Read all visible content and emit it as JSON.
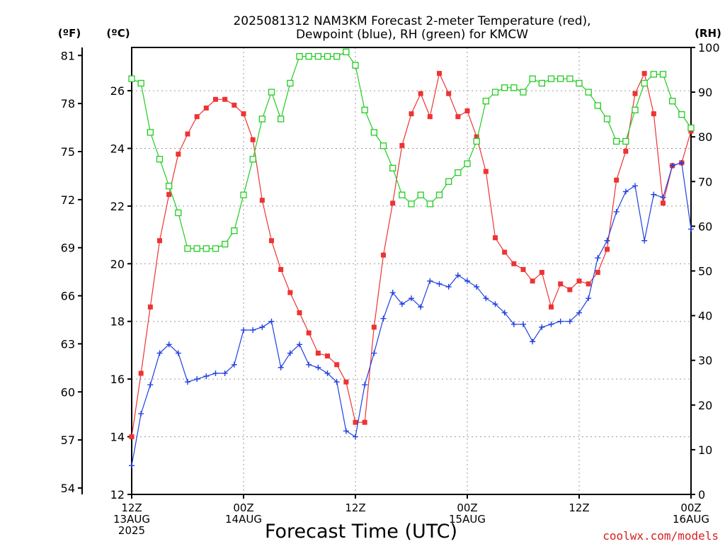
{
  "title_line1": "2025081312 NAM3KM Forecast 2-meter Temperature (red),",
  "title_line2": "Dewpoint (blue), RH (green) for KMCW",
  "credit": "coolwx.com/models",
  "chart_data": {
    "type": "line",
    "title": "2025081312 NAM3KM Forecast 2-meter Temperature (red), Dewpoint (blue), RH (green) for KMCW",
    "xlabel": "Forecast Time (UTC)",
    "x_hours": [
      0,
      1,
      2,
      3,
      4,
      5,
      6,
      7,
      8,
      9,
      10,
      11,
      12,
      13,
      14,
      15,
      16,
      17,
      18,
      19,
      20,
      21,
      22,
      23,
      24,
      25,
      26,
      27,
      28,
      29,
      30,
      31,
      32,
      33,
      34,
      35,
      36,
      37,
      38,
      39,
      40,
      41,
      42,
      43,
      44,
      45,
      46,
      47,
      48,
      49,
      50,
      51,
      52,
      53,
      54,
      55,
      56,
      57,
      58,
      59,
      60
    ],
    "x_ticks": [
      {
        "h": 0,
        "lines": [
          "12Z",
          "13AUG",
          "2025"
        ]
      },
      {
        "h": 12,
        "lines": [
          "00Z",
          "14AUG"
        ]
      },
      {
        "h": 24,
        "lines": [
          "12Z"
        ]
      },
      {
        "h": 36,
        "lines": [
          "00Z",
          "15AUG"
        ]
      },
      {
        "h": 48,
        "lines": [
          "12Z"
        ]
      },
      {
        "h": 60,
        "lines": [
          "00Z",
          "16AUG"
        ]
      }
    ],
    "xlim": [
      0,
      60
    ],
    "y_left_c": {
      "unit_label": "(ºC)",
      "ylim": [
        12,
        27.5
      ],
      "ticks": [
        12,
        14,
        16,
        18,
        20,
        22,
        24,
        26
      ]
    },
    "y_left_f": {
      "unit_label": "(ºF)",
      "ticks": [
        54,
        57,
        60,
        63,
        66,
        69,
        72,
        75,
        78,
        81
      ]
    },
    "y_right_rh": {
      "unit_label": "(RH)",
      "ylim": [
        0,
        100
      ],
      "ticks": [
        0,
        10,
        20,
        30,
        40,
        50,
        60,
        70,
        80,
        90,
        100
      ]
    },
    "grid": true,
    "series": [
      {
        "name": "Temperature",
        "axis": "c",
        "color": "#ee3333",
        "marker": "filled-square",
        "values": [
          14.0,
          16.2,
          18.5,
          20.8,
          22.4,
          23.8,
          24.5,
          25.1,
          25.4,
          25.7,
          25.7,
          25.5,
          25.2,
          24.3,
          22.2,
          20.8,
          19.8,
          19.0,
          18.3,
          17.6,
          16.9,
          16.8,
          16.5,
          15.9,
          14.5,
          14.5,
          17.8,
          20.3,
          22.1,
          24.1,
          25.2,
          25.9,
          25.1,
          26.6,
          25.9,
          25.1,
          25.3,
          24.4,
          23.2,
          20.9,
          20.4,
          20.0,
          19.8,
          19.4,
          19.7,
          18.5,
          19.3,
          19.1,
          19.4,
          19.3,
          19.7,
          20.5,
          22.9,
          23.9,
          25.9,
          26.6,
          25.2,
          22.1,
          23.4,
          23.5,
          24.6
        ]
      },
      {
        "name": "Dewpoint",
        "axis": "c",
        "color": "#2040e0",
        "marker": "plus",
        "values": [
          13.0,
          14.8,
          15.8,
          16.9,
          17.2,
          16.9,
          15.9,
          16.0,
          16.1,
          16.2,
          16.2,
          16.5,
          17.7,
          17.7,
          17.8,
          18.0,
          16.4,
          16.9,
          17.2,
          16.5,
          16.4,
          16.2,
          15.9,
          14.2,
          14.0,
          15.8,
          16.9,
          18.1,
          19.0,
          18.6,
          18.8,
          18.5,
          19.4,
          19.3,
          19.2,
          19.6,
          19.4,
          19.2,
          18.8,
          18.6,
          18.3,
          17.9,
          17.9,
          17.3,
          17.8,
          17.9,
          18.0,
          18.0,
          18.3,
          18.8,
          20.2,
          20.8,
          21.8,
          22.5,
          22.7,
          20.8,
          22.4,
          22.3,
          23.4,
          23.5,
          21.2
        ]
      },
      {
        "name": "RH",
        "axis": "rh",
        "color": "#22cc22",
        "marker": "open-square",
        "values": [
          93,
          92,
          81,
          75,
          69,
          63,
          55,
          55,
          55,
          55,
          56,
          59,
          67,
          75,
          84,
          90,
          84,
          92,
          98,
          98,
          98,
          98,
          98,
          99,
          96,
          86,
          81,
          78,
          73,
          67,
          65,
          67,
          65,
          67,
          70,
          72,
          74,
          79,
          88,
          90,
          91,
          91,
          90,
          93,
          92,
          93,
          93,
          93,
          92,
          90,
          87,
          84,
          79,
          79,
          86,
          92,
          94,
          94,
          88,
          85,
          82
        ]
      }
    ]
  }
}
